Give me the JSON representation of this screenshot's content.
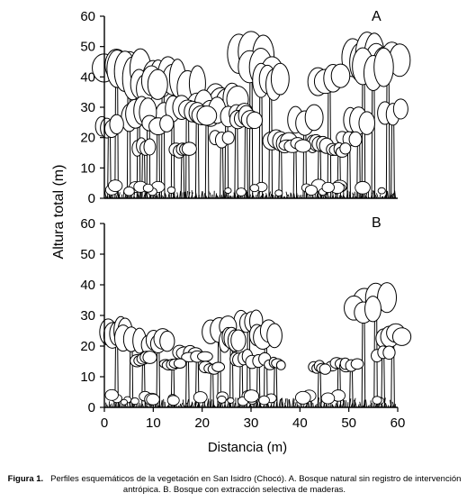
{
  "figure": {
    "panels": [
      {
        "label": "A",
        "ylim": [
          0,
          60
        ],
        "yticks": [
          "0",
          "10",
          "20",
          "30",
          "40",
          "50",
          "60"
        ]
      },
      {
        "label": "B",
        "ylim": [
          0,
          60
        ],
        "yticks": [
          "0",
          "10",
          "20",
          "30",
          "40",
          "50",
          "60"
        ],
        "xticks": [
          "0",
          "10",
          "20",
          "30",
          "40",
          "50",
          "60"
        ]
      }
    ],
    "ylabel": "Altura total (m)",
    "xlabel": "Distancia (m)",
    "caption_label": "Figura 1.",
    "caption_text": "Perfiles esquemáticos de la vegetación en San Isidro (Chocó). A. Bosque natural sin registro de intervención antrópica. B. Bosque con extracción selectiva de maderas."
  },
  "chart_data": [
    {
      "type": "profile-diagram",
      "label": "A",
      "xlim": [
        0,
        60
      ],
      "ylim": [
        0,
        60
      ],
      "trees": [
        {
          "x": 1,
          "h": 27
        },
        {
          "x": 2.5,
          "h": 50
        },
        {
          "x": 5,
          "h": 48
        },
        {
          "x": 7,
          "h": 33
        },
        {
          "x": 8,
          "h": 20
        },
        {
          "x": 9,
          "h": 43
        },
        {
          "x": 11,
          "h": 27
        },
        {
          "x": 12,
          "h": 46
        },
        {
          "x": 14,
          "h": 34
        },
        {
          "x": 16,
          "h": 18
        },
        {
          "x": 17,
          "h": 45
        },
        {
          "x": 19,
          "h": 32
        },
        {
          "x": 21,
          "h": 35
        },
        {
          "x": 24,
          "h": 22
        },
        {
          "x": 25,
          "h": 38
        },
        {
          "x": 27,
          "h": 31
        },
        {
          "x": 29,
          "h": 30
        },
        {
          "x": 30,
          "h": 54
        },
        {
          "x": 32,
          "h": 49
        },
        {
          "x": 34,
          "h": 44
        },
        {
          "x": 36,
          "h": 23
        },
        {
          "x": 39,
          "h": 20
        },
        {
          "x": 41,
          "h": 31
        },
        {
          "x": 44,
          "h": 21
        },
        {
          "x": 46,
          "h": 44
        },
        {
          "x": 48,
          "h": 18
        },
        {
          "x": 50,
          "h": 22
        },
        {
          "x": 52,
          "h": 30
        },
        {
          "x": 53,
          "h": 53
        },
        {
          "x": 55,
          "h": 50
        },
        {
          "x": 58,
          "h": 53
        },
        {
          "x": 59,
          "h": 33
        }
      ]
    },
    {
      "type": "profile-diagram",
      "label": "B",
      "xlim": [
        0,
        60
      ],
      "ylim": [
        0,
        60
      ],
      "trees": [
        {
          "x": 2.5,
          "h": 29
        },
        {
          "x": 5.5,
          "h": 27
        },
        {
          "x": 8,
          "h": 18
        },
        {
          "x": 11,
          "h": 25
        },
        {
          "x": 14,
          "h": 16
        },
        {
          "x": 17,
          "h": 20
        },
        {
          "x": 19,
          "h": 18
        },
        {
          "x": 22,
          "h": 15
        },
        {
          "x": 23.5,
          "h": 30
        },
        {
          "x": 26,
          "h": 26
        },
        {
          "x": 28,
          "h": 19
        },
        {
          "x": 29.5,
          "h": 31
        },
        {
          "x": 31.5,
          "h": 18
        },
        {
          "x": 33,
          "h": 28
        },
        {
          "x": 35,
          "h": 16
        },
        {
          "x": 44,
          "h": 15
        },
        {
          "x": 48,
          "h": 16
        },
        {
          "x": 50.5,
          "h": 16
        },
        {
          "x": 53,
          "h": 36
        },
        {
          "x": 55.5,
          "h": 41
        },
        {
          "x": 57,
          "h": 20
        },
        {
          "x": 59,
          "h": 27
        }
      ]
    }
  ]
}
